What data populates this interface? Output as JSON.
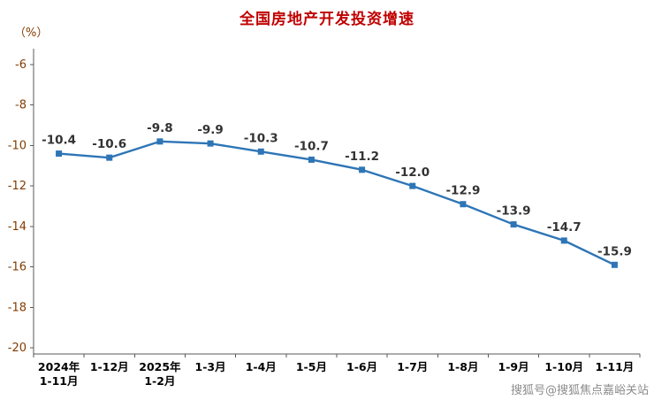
{
  "chart_data": {
    "type": "line",
    "title": "全国房地产开发投资增速",
    "unit_label": "（%）",
    "categories": [
      {
        "lines": [
          "2024年",
          "1-11月"
        ]
      },
      {
        "lines": [
          "1-12月"
        ]
      },
      {
        "lines": [
          "2025年",
          "1-2月"
        ]
      },
      {
        "lines": [
          "1-3月"
        ]
      },
      {
        "lines": [
          "1-4月"
        ]
      },
      {
        "lines": [
          "1-5月"
        ]
      },
      {
        "lines": [
          "1-6月"
        ]
      },
      {
        "lines": [
          "1-7月"
        ]
      },
      {
        "lines": [
          "1-8月"
        ]
      },
      {
        "lines": [
          "1-9月"
        ]
      },
      {
        "lines": [
          "1-10月"
        ]
      },
      {
        "lines": [
          "1-11月"
        ]
      }
    ],
    "series": [
      {
        "name": "全国房地产开发投资增速",
        "values": [
          -10.4,
          -10.6,
          -9.8,
          -9.9,
          -10.3,
          -10.7,
          -11.2,
          -12.0,
          -12.9,
          -13.9,
          -14.7,
          -15.9
        ]
      }
    ],
    "data_labels": [
      "-10.4",
      "-10.6",
      "-9.8",
      "-9.9",
      "-10.3",
      "-10.7",
      "-11.2",
      "-12.0",
      "-12.9",
      "-13.9",
      "-14.7",
      "-15.9"
    ],
    "y_ticks": [
      -6,
      -8,
      -10,
      -12,
      -14,
      -16,
      -18,
      -20
    ],
    "ylim": [
      -20,
      -6
    ],
    "grid": false,
    "legend": "none",
    "marker": "square",
    "colors": {
      "line": "#2E75B6",
      "title": "#C00000",
      "y_tick_labels": "#833C00",
      "x_tick_labels": "#000000",
      "data_labels": "#333333",
      "axis": "#595959",
      "watermark": "#8C8C8C"
    }
  },
  "watermark": {
    "text": "搜狐号@搜狐焦点嘉峪关站"
  }
}
